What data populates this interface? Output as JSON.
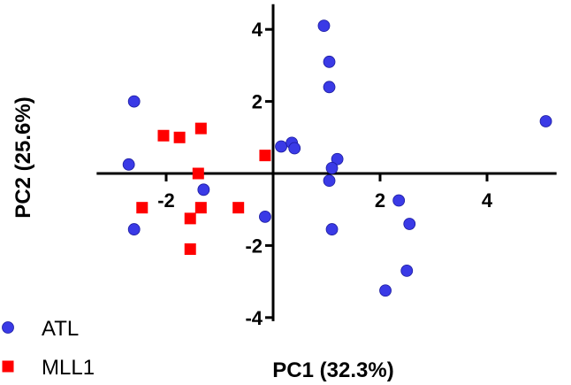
{
  "chart_data": {
    "type": "scatter",
    "xlabel": "PC1 (32.3%)",
    "ylabel": "PC2 (25.6%)",
    "xlim": [
      -3.3,
      5.3
    ],
    "ylim": [
      -4.1,
      4.7
    ],
    "xticks": [
      -2,
      2,
      4
    ],
    "yticks": [
      4,
      2,
      -2,
      -4
    ],
    "legend_position": "bottom-left",
    "series": [
      {
        "name": "ATL",
        "marker": "circle",
        "color": "#3a3ae6",
        "points": [
          {
            "x": -2.6,
            "y": 2.0
          },
          {
            "x": -2.7,
            "y": 0.25
          },
          {
            "x": -2.6,
            "y": -1.55
          },
          {
            "x": -1.3,
            "y": -0.45
          },
          {
            "x": -0.15,
            "y": -1.2
          },
          {
            "x": 0.15,
            "y": 0.75
          },
          {
            "x": 0.35,
            "y": 0.85
          },
          {
            "x": 0.4,
            "y": 0.7
          },
          {
            "x": 0.95,
            "y": 4.1
          },
          {
            "x": 1.05,
            "y": 3.1
          },
          {
            "x": 1.05,
            "y": 2.4
          },
          {
            "x": 1.2,
            "y": 0.4
          },
          {
            "x": 1.1,
            "y": 0.15
          },
          {
            "x": 1.05,
            "y": -0.2
          },
          {
            "x": 1.1,
            "y": -1.55
          },
          {
            "x": 2.35,
            "y": -0.75
          },
          {
            "x": 2.55,
            "y": -1.4
          },
          {
            "x": 2.5,
            "y": -2.7
          },
          {
            "x": 2.1,
            "y": -3.25
          },
          {
            "x": 5.1,
            "y": 1.45
          }
        ]
      },
      {
        "name": "MLL1",
        "marker": "square",
        "color": "#ff0000",
        "points": [
          {
            "x": -2.05,
            "y": 1.05
          },
          {
            "x": -1.75,
            "y": 1.0
          },
          {
            "x": -1.35,
            "y": 1.25
          },
          {
            "x": -1.4,
            "y": 0.0
          },
          {
            "x": -2.45,
            "y": -0.95
          },
          {
            "x": -1.35,
            "y": -0.95
          },
          {
            "x": -1.55,
            "y": -1.25
          },
          {
            "x": -0.65,
            "y": -0.95
          },
          {
            "x": -1.55,
            "y": -2.1
          },
          {
            "x": -0.15,
            "y": 0.5
          }
        ]
      }
    ]
  }
}
